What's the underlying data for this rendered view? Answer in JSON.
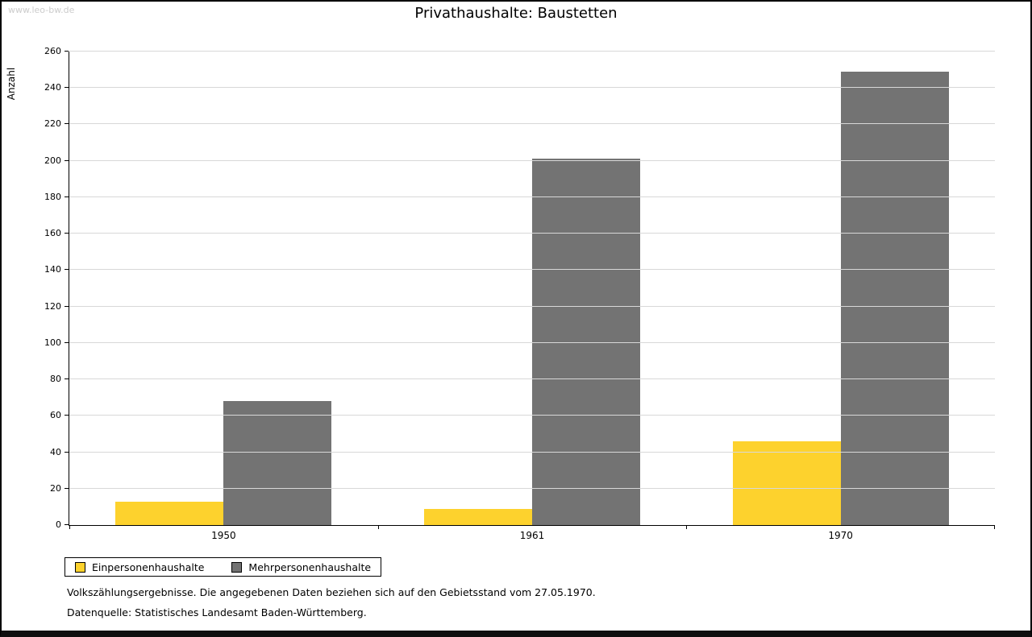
{
  "page": {
    "watermark": "www.leo-bw.de"
  },
  "chart_data": {
    "type": "bar",
    "title": "Privathaushalte: Baustetten",
    "xlabel": "",
    "ylabel": "Anzahl",
    "categories": [
      "1950",
      "1961",
      "1970"
    ],
    "series": [
      {
        "name": "Einpersonenhaushalte",
        "color": "#fdd22d",
        "values": [
          13,
          9,
          46
        ]
      },
      {
        "name": "Mehrpersonenhaushalte",
        "color": "#737373",
        "values": [
          68,
          201,
          249
        ]
      }
    ],
    "ylim": [
      0,
      260
    ],
    "ytick_step": 20,
    "grid": true,
    "legend_position": "bottom-left"
  },
  "footnotes": {
    "line1": "Volkszählungsergebnisse. Die angegebenen Daten beziehen sich auf den Gebietsstand vom 27.05.1970.",
    "line2": "Datenquelle: Statistisches Landesamt Baden-Württemberg."
  }
}
